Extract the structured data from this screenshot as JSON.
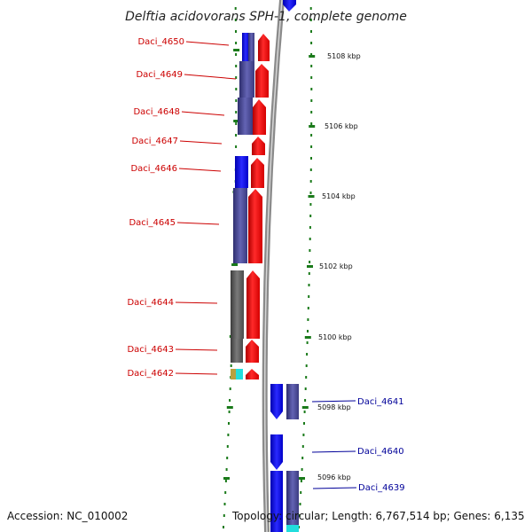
{
  "title": "Delftia acidovorans SPH-1, complete genome",
  "footer": {
    "accession": "Accession: NC_010002",
    "topology": "Topology: circular; Length: 6,767,514 bp; Genes: 6,135"
  },
  "colors": {
    "forward_strand": "#ff0000",
    "reverse_strand": "#0000cc",
    "forward_gene_label": "#cc0000",
    "reverse_gene_label": "#000099",
    "tick": "#1a7a1a",
    "backbone": "#888888"
  },
  "scale_labels": [
    "5108 kbp",
    "5106 kbp",
    "5104 kbp",
    "5102 kbp",
    "5100 kbp",
    "5098 kbp",
    "5096 kbp"
  ],
  "left_genes": [
    "Daci_4650",
    "Daci_4649",
    "Daci_4648",
    "Daci_4647",
    "Daci_4646",
    "Daci_4645",
    "Daci_4644",
    "Daci_4643",
    "Daci_4642"
  ],
  "right_genes": [
    "Daci_4641",
    "Daci_4640",
    "Daci_4639"
  ]
}
